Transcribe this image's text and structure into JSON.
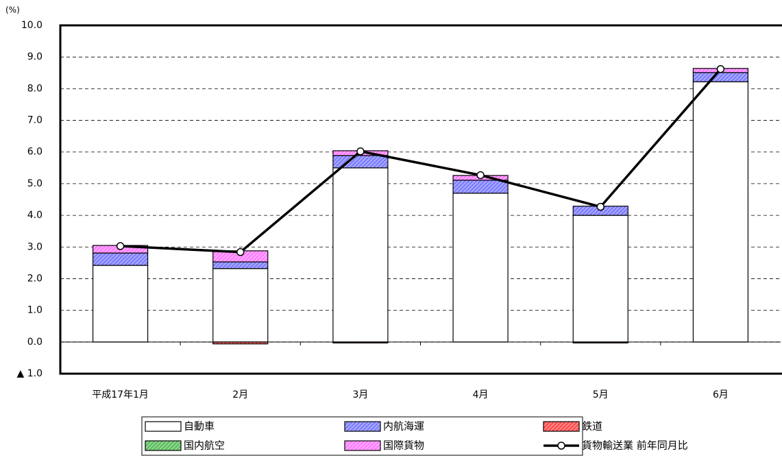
{
  "chart_data": {
    "type": "bar",
    "y_label": "(%)",
    "categories": [
      "平成17年1月",
      "2月",
      "3月",
      "4月",
      "5月",
      "6月"
    ],
    "series": [
      {
        "name": "自動車",
        "color": "#ffffff",
        "values": [
          2.42,
          2.32,
          5.5,
          4.7,
          4.0,
          8.22
        ]
      },
      {
        "name": "内航海運",
        "color": "#8080ff",
        "values": [
          0.39,
          0.21,
          0.39,
          0.41,
          0.29,
          0.29
        ]
      },
      {
        "name": "鉄道",
        "color": "#ff5050",
        "values": [
          0,
          -0.06,
          -0.03,
          0,
          -0.03,
          0
        ]
      },
      {
        "name": "国内航空",
        "color": "#60c060",
        "values": [
          0,
          0,
          0,
          0,
          0,
          0
        ]
      },
      {
        "name": "国際貨物",
        "color": "#ff80ff",
        "values": [
          0.24,
          0.35,
          0.15,
          0.15,
          0,
          0.13
        ]
      },
      {
        "name": "貨物輸送業 前年同月比",
        "type": "line",
        "color": "#000000",
        "values": [
          3.03,
          2.84,
          6.02,
          5.27,
          4.27,
          8.62
        ]
      }
    ],
    "ylim": [
      -1,
      10
    ],
    "yticks": [
      {
        "value": 10,
        "label": "10.0"
      },
      {
        "value": 9,
        "label": "9.0"
      },
      {
        "value": 8,
        "label": "8.0"
      },
      {
        "value": 7,
        "label": "7.0"
      },
      {
        "value": 6,
        "label": "6.0"
      },
      {
        "value": 5,
        "label": "5.0"
      },
      {
        "value": 4,
        "label": "4.0"
      },
      {
        "value": 3,
        "label": "3.0"
      },
      {
        "value": 2,
        "label": "2.0"
      },
      {
        "value": 1,
        "label": "1.0"
      },
      {
        "value": 0,
        "label": "0.0"
      },
      {
        "value": -1,
        "label": "▲ 1.0"
      }
    ],
    "grid": true
  }
}
